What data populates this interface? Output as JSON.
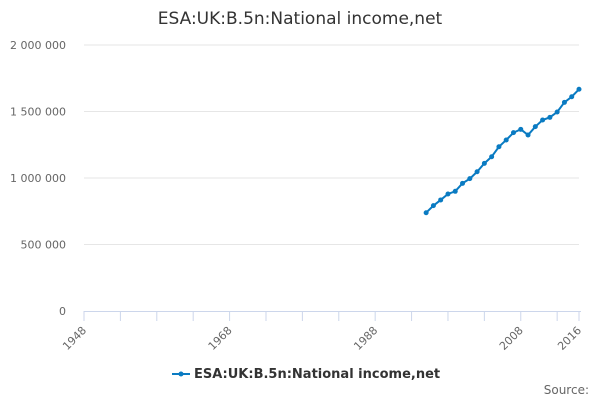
{
  "chart_data": {
    "type": "line",
    "title": "ESA:UK:B.5n:National income,net",
    "xlabel": "",
    "ylabel": "",
    "xlim": [
      1948,
      2016
    ],
    "ylim": [
      0,
      2000000
    ],
    "x_ticks": [
      "1948",
      "1968",
      "1988",
      "2008",
      "2016"
    ],
    "y_ticks": [
      "0",
      "500 000",
      "1 000 000",
      "1 500 000",
      "2 000 000"
    ],
    "grid": "horizontal",
    "legend_position": "bottom",
    "series": [
      {
        "name": "ESA:UK:B.5n:National income,net",
        "color": "#0a7bc2",
        "x": [
          1995,
          1996,
          1997,
          1998,
          1999,
          2000,
          2001,
          2002,
          2003,
          2004,
          2005,
          2006,
          2007,
          2008,
          2009,
          2010,
          2011,
          2012,
          2013,
          2014,
          2015,
          2016
        ],
        "values": [
          739000,
          792000,
          835000,
          880000,
          900000,
          960000,
          995000,
          1047000,
          1110000,
          1160000,
          1235000,
          1286000,
          1341000,
          1366000,
          1323000,
          1386000,
          1436000,
          1456000,
          1496000,
          1569000,
          1611000,
          1667000
        ]
      }
    ]
  },
  "credit": "Source:"
}
